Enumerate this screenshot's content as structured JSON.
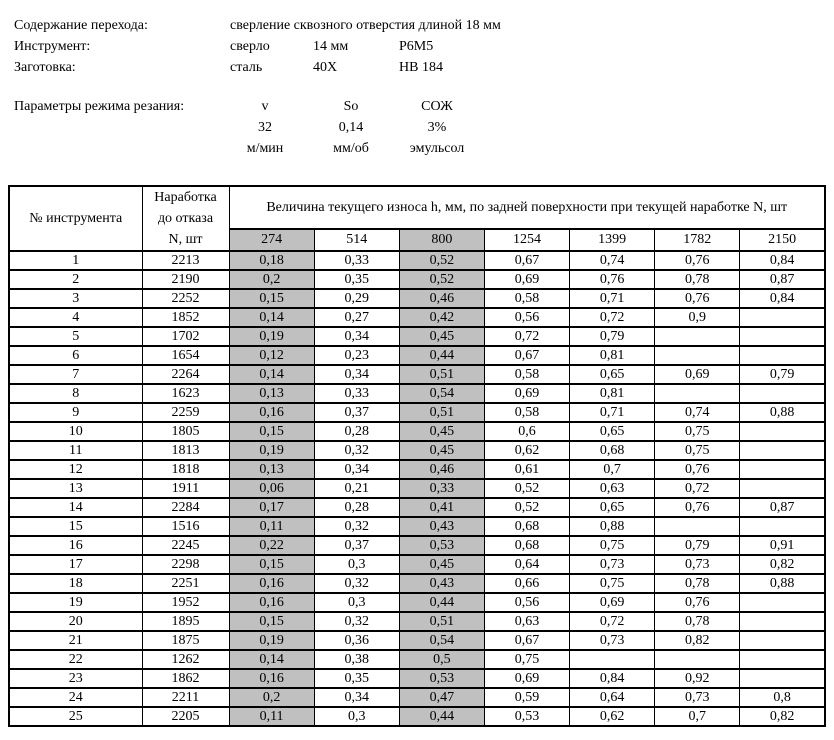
{
  "page": {
    "background": "#ffffff",
    "text_color": "#000000"
  },
  "info": {
    "lines": [
      {
        "label": "Содержание перехода:",
        "values": [
          "сверление сквозного отверстия длиной 18 мм"
        ]
      },
      {
        "label": "Инструмент:",
        "values": [
          "сверло",
          "14 мм",
          "Р6М5"
        ]
      },
      {
        "label": "Заготовка:",
        "values": [
          "сталь",
          "40Х",
          "НВ 184"
        ]
      }
    ],
    "params": {
      "label": "Параметры режима резания:",
      "columns": [
        {
          "symbol": "v",
          "value": "32",
          "unit": "м/мин"
        },
        {
          "symbol": "So",
          "value": "0,14",
          "unit": "мм/об"
        },
        {
          "symbol": "СОЖ",
          "value": "3%",
          "unit": "эмульсол"
        }
      ]
    }
  },
  "table": {
    "tool_col_header": "№ инструмента",
    "n_col_header_lines": [
      "Наработка",
      "до отказа",
      "N, шт"
    ],
    "wear_span_header": "Величина текущего износа h, мм, по задней поверхности при текущей наработке N, шт",
    "wear_columns": [
      "274",
      "514",
      "800",
      "1254",
      "1399",
      "1782",
      "2150"
    ],
    "highlighted_wear_columns": [
      0,
      2
    ],
    "highlight_color": "#c0c0c0",
    "rows": [
      {
        "num": "1",
        "n": "2213",
        "wear": [
          "0,18",
          "0,33",
          "0,52",
          "0,67",
          "0,74",
          "0,76",
          "0,84"
        ]
      },
      {
        "num": "2",
        "n": "2190",
        "wear": [
          "0,2",
          "0,35",
          "0,52",
          "0,69",
          "0,76",
          "0,78",
          "0,87"
        ]
      },
      {
        "num": "3",
        "n": "2252",
        "wear": [
          "0,15",
          "0,29",
          "0,46",
          "0,58",
          "0,71",
          "0,76",
          "0,84"
        ]
      },
      {
        "num": "4",
        "n": "1852",
        "wear": [
          "0,14",
          "0,27",
          "0,42",
          "0,56",
          "0,72",
          "0,9",
          ""
        ]
      },
      {
        "num": "5",
        "n": "1702",
        "wear": [
          "0,19",
          "0,34",
          "0,45",
          "0,72",
          "0,79",
          "",
          ""
        ]
      },
      {
        "num": "6",
        "n": "1654",
        "wear": [
          "0,12",
          "0,23",
          "0,44",
          "0,67",
          "0,81",
          "",
          ""
        ]
      },
      {
        "num": "7",
        "n": "2264",
        "wear": [
          "0,14",
          "0,34",
          "0,51",
          "0,58",
          "0,65",
          "0,69",
          "0,79"
        ]
      },
      {
        "num": "8",
        "n": "1623",
        "wear": [
          "0,13",
          "0,33",
          "0,54",
          "0,69",
          "0,81",
          "",
          ""
        ]
      },
      {
        "num": "9",
        "n": "2259",
        "wear": [
          "0,16",
          "0,37",
          "0,51",
          "0,58",
          "0,71",
          "0,74",
          "0,88"
        ]
      },
      {
        "num": "10",
        "n": "1805",
        "wear": [
          "0,15",
          "0,28",
          "0,45",
          "0,6",
          "0,65",
          "0,75",
          ""
        ]
      },
      {
        "num": "11",
        "n": "1813",
        "wear": [
          "0,19",
          "0,32",
          "0,45",
          "0,62",
          "0,68",
          "0,75",
          ""
        ]
      },
      {
        "num": "12",
        "n": "1818",
        "wear": [
          "0,13",
          "0,34",
          "0,46",
          "0,61",
          "0,7",
          "0,76",
          ""
        ]
      },
      {
        "num": "13",
        "n": "1911",
        "wear": [
          "0,06",
          "0,21",
          "0,33",
          "0,52",
          "0,63",
          "0,72",
          ""
        ]
      },
      {
        "num": "14",
        "n": "2284",
        "wear": [
          "0,17",
          "0,28",
          "0,41",
          "0,52",
          "0,65",
          "0,76",
          "0,87"
        ]
      },
      {
        "num": "15",
        "n": "1516",
        "wear": [
          "0,11",
          "0,32",
          "0,43",
          "0,68",
          "0,88",
          "",
          ""
        ]
      },
      {
        "num": "16",
        "n": "2245",
        "wear": [
          "0,22",
          "0,37",
          "0,53",
          "0,68",
          "0,75",
          "0,79",
          "0,91"
        ]
      },
      {
        "num": "17",
        "n": "2298",
        "wear": [
          "0,15",
          "0,3",
          "0,45",
          "0,64",
          "0,73",
          "0,73",
          "0,82"
        ]
      },
      {
        "num": "18",
        "n": "2251",
        "wear": [
          "0,16",
          "0,32",
          "0,43",
          "0,66",
          "0,75",
          "0,78",
          "0,88"
        ]
      },
      {
        "num": "19",
        "n": "1952",
        "wear": [
          "0,16",
          "0,3",
          "0,44",
          "0,56",
          "0,69",
          "0,76",
          ""
        ]
      },
      {
        "num": "20",
        "n": "1895",
        "wear": [
          "0,15",
          "0,32",
          "0,51",
          "0,63",
          "0,72",
          "0,78",
          ""
        ]
      },
      {
        "num": "21",
        "n": "1875",
        "wear": [
          "0,19",
          "0,36",
          "0,54",
          "0,67",
          "0,73",
          "0,82",
          ""
        ]
      },
      {
        "num": "22",
        "n": "1262",
        "wear": [
          "0,14",
          "0,38",
          "0,5",
          "0,75",
          "",
          "",
          ""
        ]
      },
      {
        "num": "23",
        "n": "1862",
        "wear": [
          "0,16",
          "0,35",
          "0,53",
          "0,69",
          "0,84",
          "0,92",
          ""
        ]
      },
      {
        "num": "24",
        "n": "2211",
        "wear": [
          "0,2",
          "0,34",
          "0,47",
          "0,59",
          "0,64",
          "0,73",
          "0,8"
        ]
      },
      {
        "num": "25",
        "n": "2205",
        "wear": [
          "0,11",
          "0,3",
          "0,44",
          "0,53",
          "0,62",
          "0,7",
          "0,82"
        ]
      }
    ]
  }
}
